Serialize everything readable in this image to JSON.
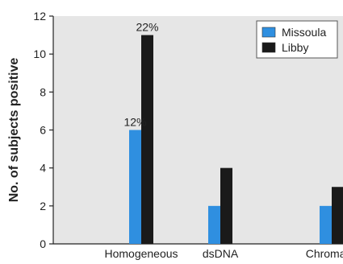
{
  "chart_data": {
    "type": "bar",
    "categories": [
      "Homogeneous",
      "dsDNA",
      "Chromatin"
    ],
    "series": [
      {
        "name": "Missoula",
        "values": [
          6,
          2,
          2
        ],
        "color": "#2f8fe0"
      },
      {
        "name": "Libby",
        "values": [
          11,
          4,
          3
        ],
        "color": "#1a1a1a"
      }
    ],
    "annotations": [
      {
        "series": 0,
        "category": 0,
        "text": "12%"
      },
      {
        "series": 1,
        "category": 0,
        "text": "22%"
      }
    ],
    "ylabel": "No. of subjects positive",
    "xlabel": "",
    "title": "",
    "ylim": [
      0,
      12
    ],
    "yticks": [
      0,
      2,
      4,
      6,
      8,
      10,
      12
    ],
    "grid": false,
    "legend_position": "top-right",
    "plot_background": "#e6e6e6"
  }
}
